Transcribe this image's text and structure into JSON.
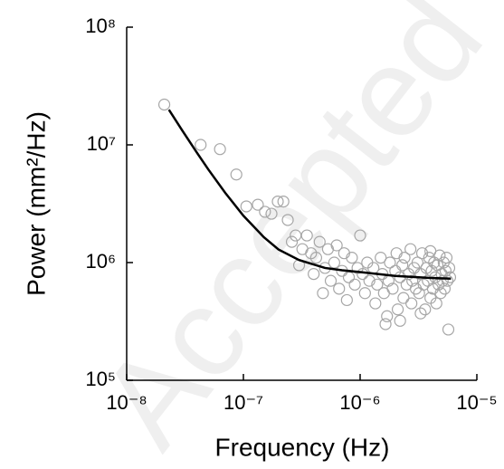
{
  "chart_data": {
    "type": "scatter",
    "watermark": "Accepted",
    "x_label": "Frequency (Hz)",
    "y_label": "Power (mm²/Hz)",
    "xscale": "log",
    "yscale": "log",
    "xlim": [
      1e-08,
      1e-05
    ],
    "ylim": [
      100000,
      100000000
    ],
    "xticks": [
      {
        "value": 1e-08,
        "label": "10⁻⁸"
      },
      {
        "value": 1e-07,
        "label": "10⁻⁷"
      },
      {
        "value": 1e-06,
        "label": "10⁻⁶"
      },
      {
        "value": 1e-05,
        "label": "10⁻⁵"
      }
    ],
    "yticks": [
      {
        "value": 100000,
        "label": "10⁵"
      },
      {
        "value": 1000000,
        "label": "10⁶"
      },
      {
        "value": 10000000,
        "label": "10⁷"
      },
      {
        "value": 100000000,
        "label": "10⁸"
      }
    ],
    "series": [
      {
        "type": "scatter",
        "color": "#a6a6a6",
        "x": [
          2.1e-08,
          4.3e-08,
          6.3e-08,
          8.7e-08,
          1.06e-07,
          1.33e-07,
          1.53e-07,
          1.74e-07,
          1.97e-07,
          2.2e-07,
          2.4e-07,
          2.6e-07,
          2.8e-07,
          3e-07,
          3.2e-07,
          3.5e-07,
          3.8e-07,
          4e-07,
          4.2e-07,
          4.5e-07,
          4.8e-07,
          5e-07,
          5.3e-07,
          5.6e-07,
          6e-07,
          6.3e-07,
          6.6e-07,
          7e-07,
          7.3e-07,
          7.7e-07,
          8e-07,
          8.5e-07,
          9e-07,
          9.5e-07,
          1e-06,
          1.05e-06,
          1.1e-06,
          1.15e-06,
          1.2e-06,
          1.3e-06,
          1.35e-06,
          1.4e-06,
          1.5e-06,
          1.55e-06,
          1.6e-06,
          1.7e-06,
          1.75e-06,
          1.8e-06,
          1.9e-06,
          2e-06,
          2.05e-06,
          2.1e-06,
          2.2e-06,
          2.3e-06,
          2.35e-06,
          2.4e-06,
          2.5e-06,
          2.6e-06,
          2.7e-06,
          2.75e-06,
          2.8e-06,
          2.9e-06,
          3e-06,
          3.1e-06,
          3.2e-06,
          3.3e-06,
          3.4e-06,
          3.5e-06,
          3.6e-06,
          3.7e-06,
          3.8e-06,
          3.9e-06,
          4e-06,
          4.1e-06,
          4.2e-06,
          4.3e-06,
          4.4e-06,
          4.5e-06,
          4.6e-06,
          4.7e-06,
          4.8e-06,
          4.9e-06,
          5e-06,
          5.1e-06,
          5.2e-06,
          5.3e-06,
          5.4e-06,
          5.5e-06,
          5.6e-06,
          5.7e-06,
          5.8e-06,
          5.9e-06,
          2.2e-06,
          1.65e-06,
          3.3e-06,
          4e-06
        ],
        "y": [
          22000000,
          10000000,
          9200000,
          5600000,
          3000000,
          3100000,
          2700000,
          2600000,
          3300000,
          3300000,
          2300000,
          1500000,
          1700000,
          950000,
          1300000,
          1700000,
          1200000,
          800000,
          1100000,
          1500000,
          550000,
          900000,
          1300000,
          700000,
          1000000,
          1400000,
          600000,
          850000,
          1200000,
          480000,
          750000,
          1100000,
          650000,
          900000,
          1700000,
          800000,
          550000,
          1000000,
          700000,
          900000,
          450000,
          650000,
          1100000,
          800000,
          550000,
          350000,
          700000,
          1000000,
          600000,
          850000,
          1200000,
          400000,
          750000,
          950000,
          500000,
          1100000,
          650000,
          800000,
          1300000,
          450000,
          700000,
          900000,
          600000,
          1000000,
          550000,
          800000,
          1200000,
          650000,
          400000,
          900000,
          700000,
          1100000,
          500000,
          850000,
          600000,
          1000000,
          750000,
          450000,
          950000,
          650000,
          1150000,
          550000,
          800000,
          700000,
          1000000,
          600000,
          850000,
          1100000,
          700000,
          270000,
          900000,
          750000,
          320000,
          300000,
          370000,
          1250000
        ]
      },
      {
        "type": "line",
        "color": "#000000",
        "x": [
          2.3e-08,
          3e-08,
          4e-08,
          5e-08,
          7e-08,
          1e-07,
          1.5e-07,
          2e-07,
          3e-07,
          5e-07,
          7e-07,
          1e-06,
          2e-06,
          4e-06,
          6e-06
        ],
        "y": [
          19900000,
          13200000,
          8570000,
          6190000,
          3900000,
          2500000,
          1640000,
          1290000,
          1050000,
          900000,
          860000,
          830000,
          770000,
          740000,
          730000
        ]
      }
    ]
  }
}
